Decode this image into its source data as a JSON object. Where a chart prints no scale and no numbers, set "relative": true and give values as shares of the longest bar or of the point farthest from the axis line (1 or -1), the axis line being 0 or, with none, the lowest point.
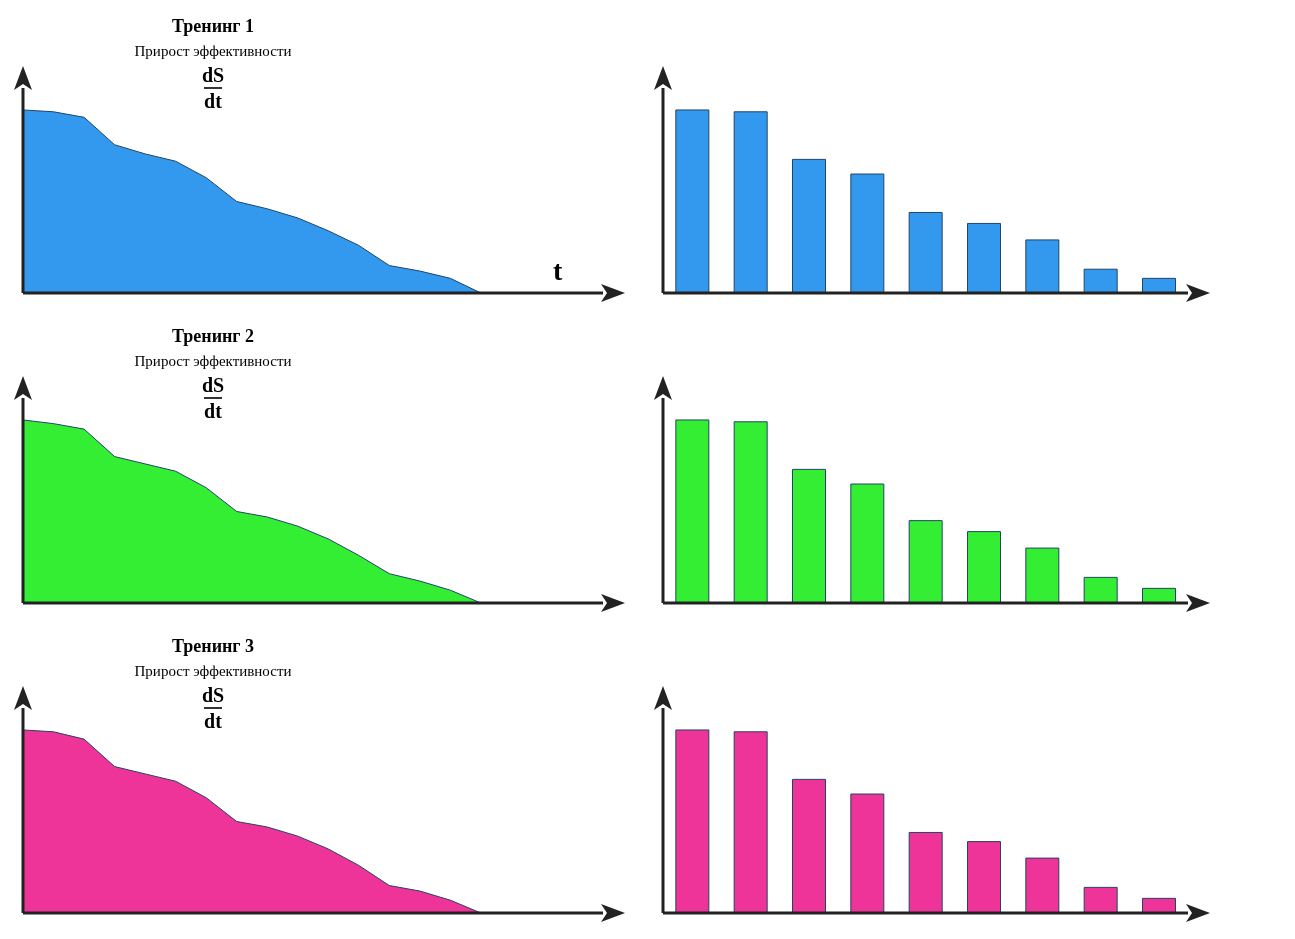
{
  "chart_data": [
    {
      "type": "area",
      "title": "Тренинг 1",
      "subtitle": "Прирост эффективности",
      "annotations": [
        "dS",
        "dt"
      ],
      "xlabel": "t",
      "relative": true,
      "categories": [
        null,
        null,
        null,
        null,
        null,
        null,
        null,
        null,
        null,
        null,
        null,
        null,
        null,
        null,
        null,
        null,
        null,
        null,
        null,
        null
      ],
      "series": [
        {
          "color": "#3399ee",
          "values": [
            1,
            0.99,
            0.96,
            0.81,
            0.76,
            0.72,
            0.63,
            0.5,
            0.46,
            0.41,
            0.34,
            0.26,
            0.15,
            0.12,
            0.08,
            0,
            null,
            null,
            null,
            null
          ]
        }
      ]
    },
    {
      "type": "bar",
      "relative": true,
      "categories": [
        null,
        null,
        null,
        null,
        null,
        null,
        null,
        null,
        null
      ],
      "series": [
        {
          "color": "#3399ee",
          "values": [
            1,
            0.99,
            0.73,
            0.65,
            0.44,
            0.38,
            0.29,
            0.13,
            0.08
          ]
        }
      ]
    },
    {
      "type": "area",
      "title": "Тренинг 2",
      "subtitle": "Прирост эффективности",
      "annotations": [
        "dS",
        "dt"
      ],
      "relative": true,
      "categories": [
        null,
        null,
        null,
        null,
        null,
        null,
        null,
        null,
        null,
        null,
        null,
        null,
        null,
        null,
        null,
        null,
        null,
        null,
        null,
        null
      ],
      "series": [
        {
          "color": "#33ee33",
          "values": [
            1,
            0.98,
            0.95,
            0.8,
            0.76,
            0.72,
            0.63,
            0.5,
            0.47,
            0.42,
            0.35,
            0.26,
            0.16,
            0.12,
            0.07,
            0,
            null,
            null,
            null,
            null
          ]
        }
      ]
    },
    {
      "type": "bar",
      "relative": true,
      "categories": [
        null,
        null,
        null,
        null,
        null,
        null,
        null,
        null,
        null
      ],
      "series": [
        {
          "color": "#33ee33",
          "values": [
            1,
            0.99,
            0.73,
            0.65,
            0.45,
            0.39,
            0.3,
            0.14,
            0.08
          ]
        }
      ]
    },
    {
      "type": "area",
      "title": "Тренинг 3",
      "subtitle": "Прирост эффективности",
      "annotations": [
        "dS",
        "dt"
      ],
      "relative": true,
      "categories": [
        null,
        null,
        null,
        null,
        null,
        null,
        null,
        null,
        null,
        null,
        null,
        null,
        null,
        null,
        null,
        null,
        null,
        null,
        null,
        null
      ],
      "series": [
        {
          "color": "#ee3399",
          "values": [
            1,
            0.99,
            0.95,
            0.8,
            0.76,
            0.72,
            0.63,
            0.5,
            0.47,
            0.42,
            0.35,
            0.26,
            0.15,
            0.12,
            0.07,
            0,
            null,
            null,
            null,
            null
          ]
        }
      ]
    },
    {
      "type": "bar",
      "relative": true,
      "categories": [
        null,
        null,
        null,
        null,
        null,
        null,
        null,
        null,
        null
      ],
      "series": [
        {
          "color": "#ee3399",
          "values": [
            1,
            0.99,
            0.73,
            0.65,
            0.44,
            0.39,
            0.3,
            0.14,
            0.08
          ]
        }
      ]
    }
  ]
}
